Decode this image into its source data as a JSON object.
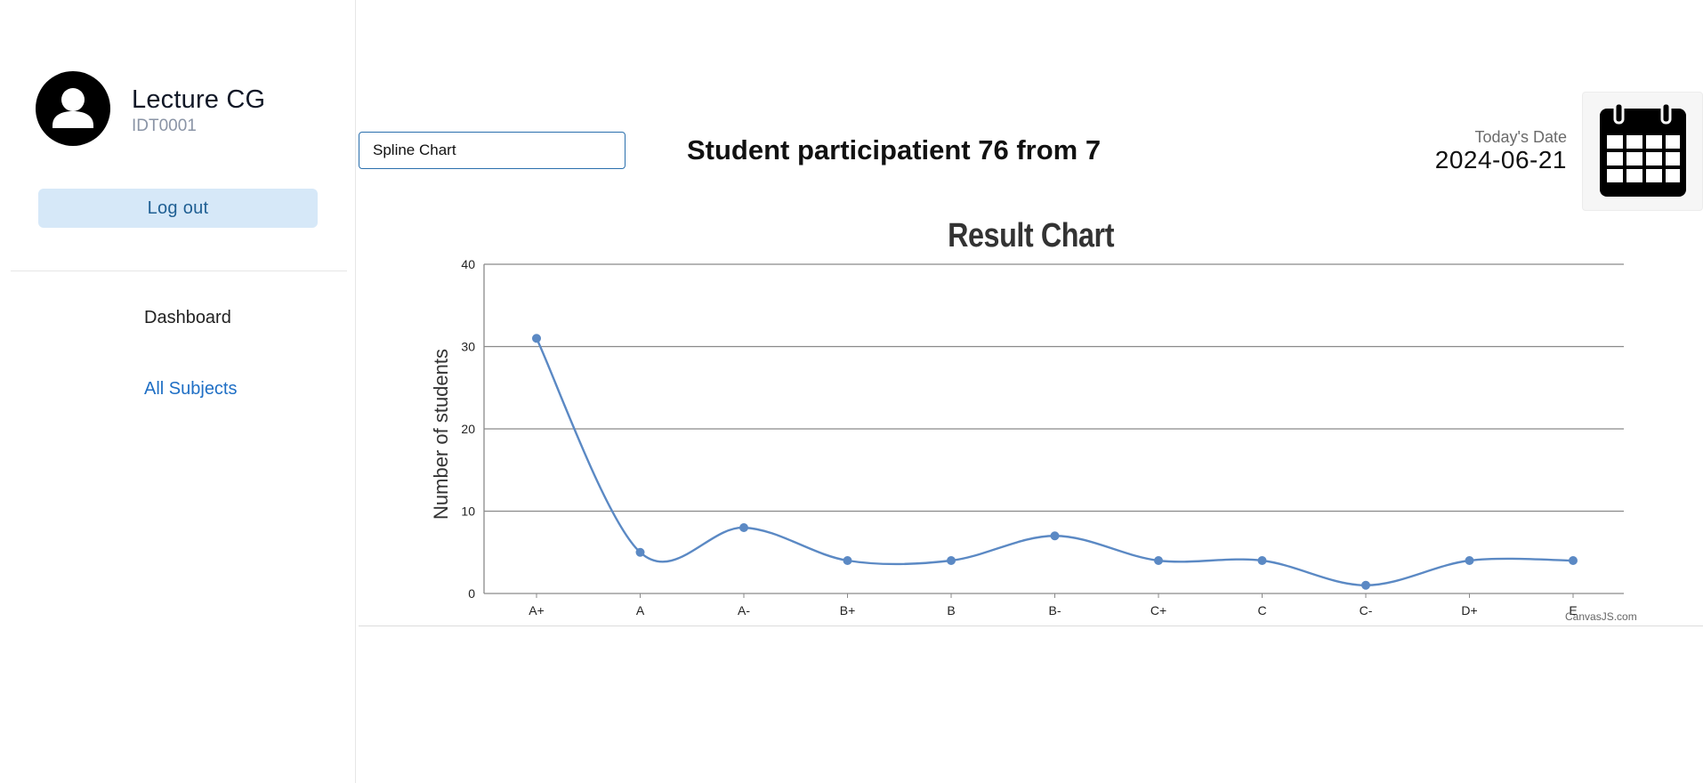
{
  "user": {
    "name": "Lecture CG",
    "id": "IDT0001"
  },
  "sidebar": {
    "logout_label": "Log out",
    "nav": [
      {
        "label": "Dashboard",
        "active": false
      },
      {
        "label": "All Subjects",
        "active": true
      }
    ]
  },
  "header": {
    "chart_type_value": "Spline Chart",
    "participation_text": "Student participatient 76 from 7",
    "date_label": "Today's Date",
    "date_value": "2024-06-21"
  },
  "icons": {
    "avatar": "user-avatar-icon",
    "calendar": "calendar-icon"
  },
  "colors": {
    "series": "#5b89c4",
    "accent": "#1f6fc5",
    "logout_bg": "#d6e8f8"
  },
  "chart_data": {
    "type": "line",
    "style": "spline",
    "title": "Result Chart",
    "xlabel": "",
    "ylabel": "Number of students",
    "categories": [
      "A+",
      "A",
      "A-",
      "B+",
      "B",
      "B-",
      "C+",
      "C",
      "C-",
      "D+",
      "E"
    ],
    "values": [
      31,
      5,
      8,
      4,
      4,
      7,
      4,
      4,
      1,
      4,
      4
    ],
    "ylim": [
      0,
      40
    ],
    "yticks": [
      0,
      10,
      20,
      30,
      40
    ],
    "grid": true,
    "credit": "CanvasJS.com"
  }
}
